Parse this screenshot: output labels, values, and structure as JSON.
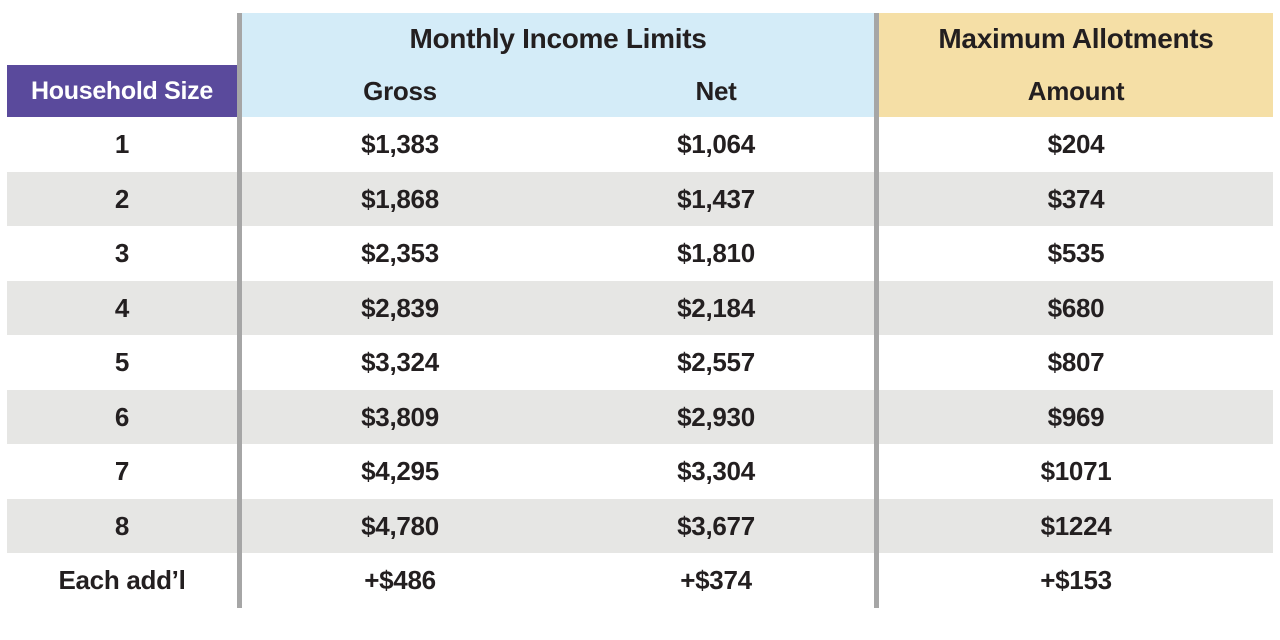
{
  "colors": {
    "household_header_bg": "#5a4a9c",
    "household_header_text": "#ffffff",
    "income_header_bg": "#d4ecf8",
    "allotments_header_bg": "#f5dfa6",
    "row_stripe_bg": "#e6e6e4",
    "divider_line": "#a6a6a6",
    "text": "#231f20",
    "page_bg": "#ffffff"
  },
  "chart_data": {
    "type": "table",
    "corner_header": "Household Size",
    "groups": [
      {
        "title": "Monthly Income Limits",
        "columns": [
          "Gross",
          "Net"
        ]
      },
      {
        "title": "Maximum Allotments",
        "columns": [
          "Amount"
        ]
      }
    ],
    "rows": [
      {
        "household_size": "1",
        "gross": "$1,383",
        "net": "$1,064",
        "amount": "$204"
      },
      {
        "household_size": "2",
        "gross": "$1,868",
        "net": "$1,437",
        "amount": "$374"
      },
      {
        "household_size": "3",
        "gross": "$2,353",
        "net": "$1,810",
        "amount": "$535"
      },
      {
        "household_size": "4",
        "gross": "$2,839",
        "net": "$2,184",
        "amount": "$680"
      },
      {
        "household_size": "5",
        "gross": "$3,324",
        "net": "$2,557",
        "amount": "$807"
      },
      {
        "household_size": "6",
        "gross": "$3,809",
        "net": "$2,930",
        "amount": "$969"
      },
      {
        "household_size": "7",
        "gross": "$4,295",
        "net": "$3,304",
        "amount": "$1071"
      },
      {
        "household_size": "8",
        "gross": "$4,780",
        "net": "$3,677",
        "amount": "$1224"
      },
      {
        "household_size": "Each add’l",
        "gross": "+$486",
        "net": "+$374",
        "amount": "+$153"
      }
    ]
  }
}
